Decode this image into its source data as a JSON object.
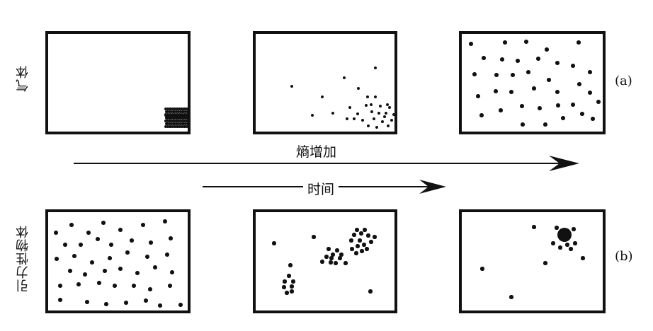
{
  "rows": [
    {
      "label": "气体",
      "tag": "(a)"
    },
    {
      "label": "引力性物体",
      "tag": "(b)"
    }
  ],
  "arrows": {
    "entropy_label": "熵增加",
    "time_label": "时间"
  },
  "colors": {
    "ink": "#111111",
    "background": "#ffffff"
  }
}
